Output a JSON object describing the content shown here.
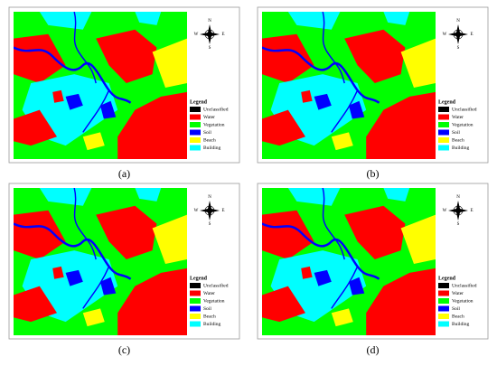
{
  "panels": [
    {
      "caption": "(a)",
      "compass": {
        "n": "N",
        "s": "S",
        "e": "E",
        "w": "W"
      },
      "legend": {
        "title": "Legend",
        "items": [
          {
            "label": "Unclassified",
            "color": "#000000"
          },
          {
            "label": "Water",
            "color": "#ff0000"
          },
          {
            "label": "Vegetation",
            "color": "#00ff00"
          },
          {
            "label": "Soil",
            "color": "#0000ff"
          },
          {
            "label": "Beach",
            "color": "#ffff00"
          },
          {
            "label": "Building",
            "color": "#00ffff"
          }
        ]
      }
    },
    {
      "caption": "(b)",
      "compass": {
        "n": "N",
        "s": "S",
        "e": "E",
        "w": "W"
      },
      "legend": {
        "title": "Legend",
        "items": [
          {
            "label": "Unclassified",
            "color": "#000000"
          },
          {
            "label": "Water",
            "color": "#ff0000"
          },
          {
            "label": "Vegetation",
            "color": "#00ff00"
          },
          {
            "label": "Soil",
            "color": "#0000ff"
          },
          {
            "label": "Beach",
            "color": "#ffff00"
          },
          {
            "label": "Building",
            "color": "#00ffff"
          }
        ]
      }
    },
    {
      "caption": "(c)",
      "compass": {
        "n": "N",
        "s": "S",
        "e": "E",
        "w": "W"
      },
      "legend": {
        "title": "Legend",
        "items": [
          {
            "label": "Unclassified",
            "color": "#000000"
          },
          {
            "label": "Water",
            "color": "#ff0000"
          },
          {
            "label": "Vegetation",
            "color": "#00ff00"
          },
          {
            "label": "Soil",
            "color": "#0000ff"
          },
          {
            "label": "Beach",
            "color": "#ffff00"
          },
          {
            "label": "Building",
            "color": "#00ffff"
          }
        ]
      }
    },
    {
      "caption": "(d)",
      "compass": {
        "n": "N",
        "s": "S",
        "e": "E",
        "w": "W"
      },
      "legend": {
        "title": "Legend",
        "items": [
          {
            "label": "Unclassified",
            "color": "#000000"
          },
          {
            "label": "Water",
            "color": "#ff0000"
          },
          {
            "label": "Vegetation",
            "color": "#00ff00"
          },
          {
            "label": "Soil",
            "color": "#0000ff"
          },
          {
            "label": "Beach",
            "color": "#ffff00"
          },
          {
            "label": "Building",
            "color": "#00ffff"
          }
        ]
      }
    }
  ]
}
